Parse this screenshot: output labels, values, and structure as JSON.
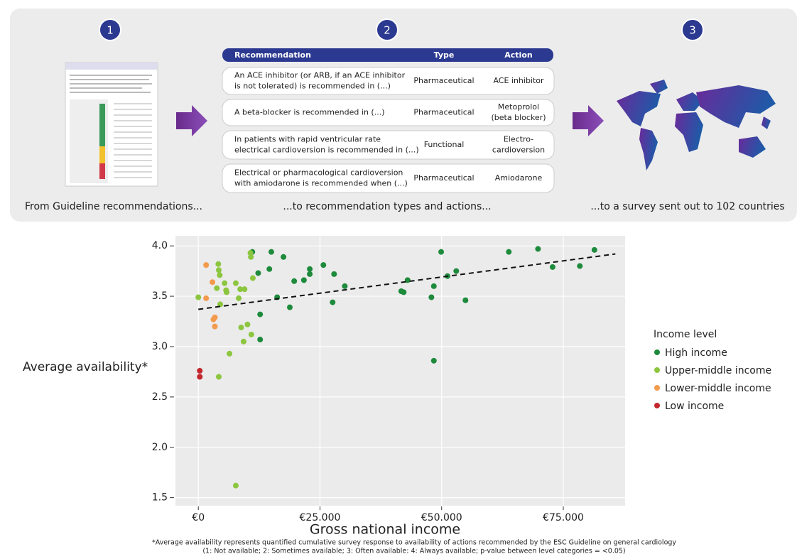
{
  "panel": {
    "steps": [
      {
        "number": "1",
        "caption": "From Guideline recommendations..."
      },
      {
        "number": "2",
        "caption": "...to recommendation types and actions..."
      },
      {
        "number": "3",
        "caption": "...to a survey sent out to 102 countries"
      }
    ],
    "table": {
      "header": [
        "Recommendation",
        "Type",
        "Action"
      ],
      "rows": [
        {
          "recommendation": [
            "An ACE inhibitor (or ARB, if an ACE inhibitor",
            "is not tolerated) is recommended in (...)"
          ],
          "type": [
            "Pharmaceutical"
          ],
          "action": [
            "ACE inhibitor"
          ]
        },
        {
          "recommendation": [
            "A beta-blocker is recommended in (...)"
          ],
          "type": [
            "Pharmaceutical"
          ],
          "action": [
            "Metoprolol",
            "(beta blocker)"
          ]
        },
        {
          "recommendation": [
            "In patients with rapid ventricular rate",
            "electrical cardioversion is recommended in (...)"
          ],
          "type": [
            "Functional"
          ],
          "action": [
            "Electro-",
            "cardioversion"
          ]
        },
        {
          "recommendation": [
            "Electrical or pharmacological cardioversion",
            "with amiodarone is recommended when (...)"
          ],
          "type": [
            "Pharmaceutical"
          ],
          "action": [
            "Amiodarone"
          ]
        }
      ]
    }
  },
  "chart_data": {
    "type": "scatter",
    "x_label": "Gross national income",
    "y_label": "Average availability*",
    "xlim": [
      -4700,
      87700
    ],
    "ylim": [
      1.42,
      4.1
    ],
    "xticks": [
      {
        "value": 0,
        "label": "€0"
      },
      {
        "value": 25000,
        "label": "€25.000"
      },
      {
        "value": 50000,
        "label": "€50.000"
      },
      {
        "value": 75000,
        "label": "€75.000"
      }
    ],
    "yticks": [
      1.5,
      {
        "value": 2,
        "label": "2.0"
      },
      2.5,
      {
        "value": 3,
        "label": "3.0"
      },
      3.5,
      {
        "value": 4,
        "label": "4.0"
      }
    ],
    "grid": true,
    "legend": {
      "title": "Income level",
      "position": "right"
    },
    "series": [
      {
        "name": "High income",
        "color": "#1e8a3c",
        "x": [
          11100,
          15000,
          17500,
          12300,
          14600,
          16200,
          12700,
          12700,
          18800,
          19700,
          21700,
          22900,
          22900,
          25700,
          27900,
          27600,
          30100,
          41700,
          42200,
          43000,
          47900,
          48400,
          48400,
          49900,
          51200,
          53000,
          54900,
          63800,
          69800,
          72800,
          78400,
          81400
        ],
        "values": [
          3.94,
          3.94,
          3.89,
          3.73,
          3.77,
          3.49,
          3.32,
          3.07,
          3.39,
          3.65,
          3.66,
          3.77,
          3.72,
          3.81,
          3.72,
          3.44,
          3.6,
          3.55,
          3.54,
          3.66,
          3.49,
          3.6,
          2.86,
          3.94,
          3.7,
          3.75,
          3.46,
          3.94,
          3.97,
          3.79,
          3.8,
          3.96
        ]
      },
      {
        "name": "Upper-middle income",
        "color": "#8cc63f",
        "x": [
          0,
          4100,
          4200,
          4400,
          3800,
          5400,
          5700,
          5800,
          4500,
          4200,
          6400,
          7700,
          8600,
          9500,
          8300,
          8800,
          10100,
          9300,
          10900,
          10700,
          10800,
          11200,
          7700
        ],
        "values": [
          3.49,
          3.82,
          3.76,
          3.71,
          3.58,
          3.63,
          3.56,
          3.54,
          3.42,
          2.7,
          2.93,
          3.63,
          3.57,
          3.57,
          3.48,
          3.19,
          3.22,
          3.05,
          3.12,
          3.93,
          3.89,
          3.68,
          1.62
        ]
      },
      {
        "name": "Lower-middle income",
        "color": "#f39a4c",
        "x": [
          1600,
          1600,
          2900,
          3400,
          3100,
          3400
        ],
        "values": [
          3.81,
          3.48,
          3.64,
          3.29,
          3.27,
          3.2
        ]
      },
      {
        "name": "Low income",
        "color": "#c3272e",
        "x": [
          300,
          300
        ],
        "values": [
          2.76,
          2.7
        ]
      }
    ],
    "trendline": {
      "x": [
        0,
        85700
      ],
      "values": [
        3.37,
        3.92
      ]
    },
    "footnote": [
      "*Average availability represents quantified cumulative survey response to availability of actions recommended by the ESC Guideline on general cardiology",
      "(1: Not available; 2: Sometimes available; 3: Often available: 4: Always available; p-value between level categories = <0.05)"
    ]
  }
}
